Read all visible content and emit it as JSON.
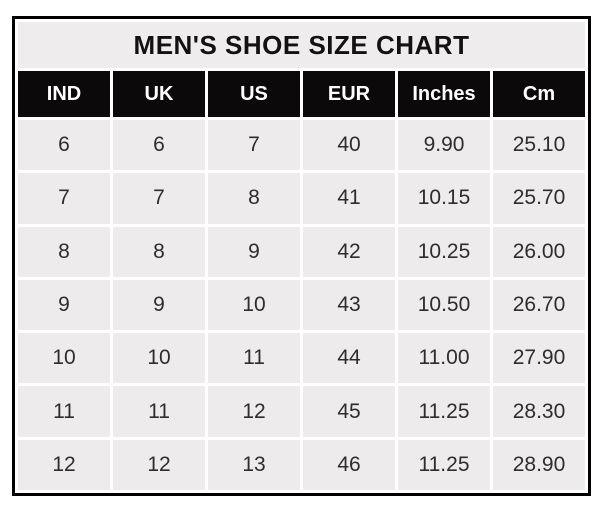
{
  "chart_data": {
    "type": "table",
    "title": "MEN'S SHOE SIZE CHART",
    "columns": [
      "IND",
      "UK",
      "US",
      "EUR",
      "Inches",
      "Cm"
    ],
    "rows": [
      [
        "6",
        "6",
        "7",
        "40",
        "9.90",
        "25.10"
      ],
      [
        "7",
        "7",
        "8",
        "41",
        "10.15",
        "25.70"
      ],
      [
        "8",
        "8",
        "9",
        "42",
        "10.25",
        "26.00"
      ],
      [
        "9",
        "9",
        "10",
        "43",
        "10.50",
        "26.70"
      ],
      [
        "10",
        "10",
        "11",
        "44",
        "11.00",
        "27.90"
      ],
      [
        "11",
        "11",
        "12",
        "45",
        "11.25",
        "28.30"
      ],
      [
        "12",
        "12",
        "13",
        "46",
        "11.25",
        "28.90"
      ]
    ],
    "layout": {
      "grid": "white 3px gridlines between cells",
      "outer_border": "black"
    }
  },
  "colors": {
    "outer_border": "#000000",
    "title_bg": "#eeecec",
    "title_text": "#131112",
    "header_bg": "#0c090b",
    "header_text": "#ffffff",
    "cell_bg": "#edebeb",
    "cell_text": "#2e2c2d",
    "gridline": "#ffffff",
    "page_bg": "#ffffff"
  }
}
